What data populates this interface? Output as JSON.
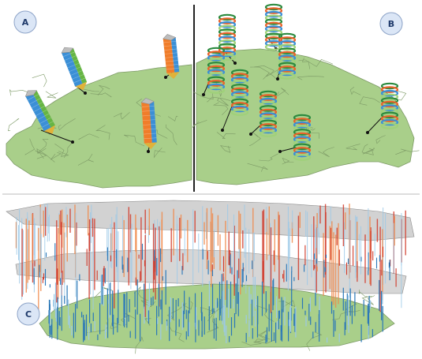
{
  "panels": [
    {
      "id": "A",
      "label": "A"
    },
    {
      "id": "B",
      "label": "B"
    },
    {
      "id": "C",
      "label": "C"
    }
  ],
  "colors": {
    "map_fill": "#a9cf8a",
    "map_stroke": "#7d9a66",
    "slab_fill": "#cdcdcd",
    "badge_fill": "#dbe6f6",
    "badge_stroke": "#8ea4c8",
    "bar_orange": "#f08a4b",
    "bar_red": "#d13a2a",
    "bar_blue": "#2b78b8",
    "bar_lightblue": "#9cc9e8",
    "prism_blue": "#3b8fd6",
    "prism_green": "#66b544",
    "prism_orange": "#f07d2a",
    "divider": "#222222"
  }
}
